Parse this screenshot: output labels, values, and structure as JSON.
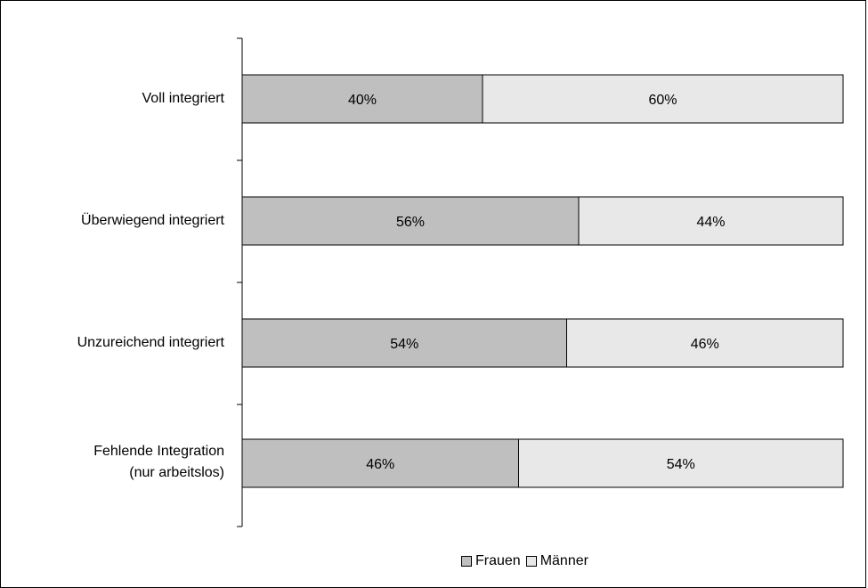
{
  "chart_data": {
    "type": "bar",
    "orientation": "horizontal",
    "stacked": true,
    "categories": [
      "Voll integriert",
      "Überwiegend integriert",
      "Unzureichend integriert",
      "Fehlende Integration\n(nur arbeitslos)"
    ],
    "series": [
      {
        "name": "Frauen",
        "values": [
          40,
          56,
          54,
          46
        ],
        "color": "#bfbfbf",
        "labels": [
          "40%",
          "56%",
          "54%",
          "46%"
        ]
      },
      {
        "name": "Männer",
        "values": [
          60,
          44,
          46,
          54
        ],
        "color": "#e8e8e8",
        "labels": [
          "60%",
          "44%",
          "46%",
          "54%"
        ]
      }
    ],
    "xlim": [
      0,
      100
    ],
    "grid": false,
    "legend_position": "bottom"
  }
}
